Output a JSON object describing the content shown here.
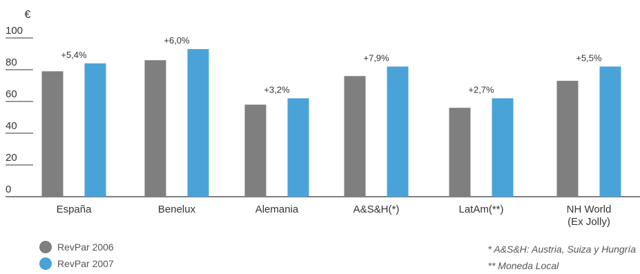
{
  "chart_data": {
    "type": "bar",
    "unit": "€",
    "categories": [
      "España",
      "Benelux",
      "Alemania",
      "A&S&H(*)",
      "LatAm(**)",
      "NH World"
    ],
    "category_sublabels": [
      "",
      "",
      "",
      "",
      "",
      "(Ex Jolly)"
    ],
    "series": [
      {
        "name": "RevPar 2006",
        "values": [
          79,
          86,
          58,
          76,
          56,
          73
        ],
        "color": "#7f7f7f"
      },
      {
        "name": "RevPar 2007",
        "values": [
          84,
          93,
          62,
          82,
          62,
          82
        ],
        "color": "#4aa3d8"
      }
    ],
    "annotations": [
      "+5,4%",
      "+6,0%",
      "+3,2%",
      "+7,9%",
      "+2,7%",
      "+5,5%"
    ],
    "yticks": [
      0,
      20,
      40,
      60,
      80,
      100
    ],
    "ylim": [
      0,
      100
    ],
    "legend_position": "bottom-left"
  },
  "legend": {
    "items": [
      {
        "label": "RevPar 2006",
        "color": "#7f7f7f"
      },
      {
        "label": "RevPar 2007",
        "color": "#4aa3d8"
      }
    ]
  },
  "notes": {
    "line1": "* A&S&H: Austria, Suiza y Hungría",
    "line2": "** Moneda Local"
  }
}
